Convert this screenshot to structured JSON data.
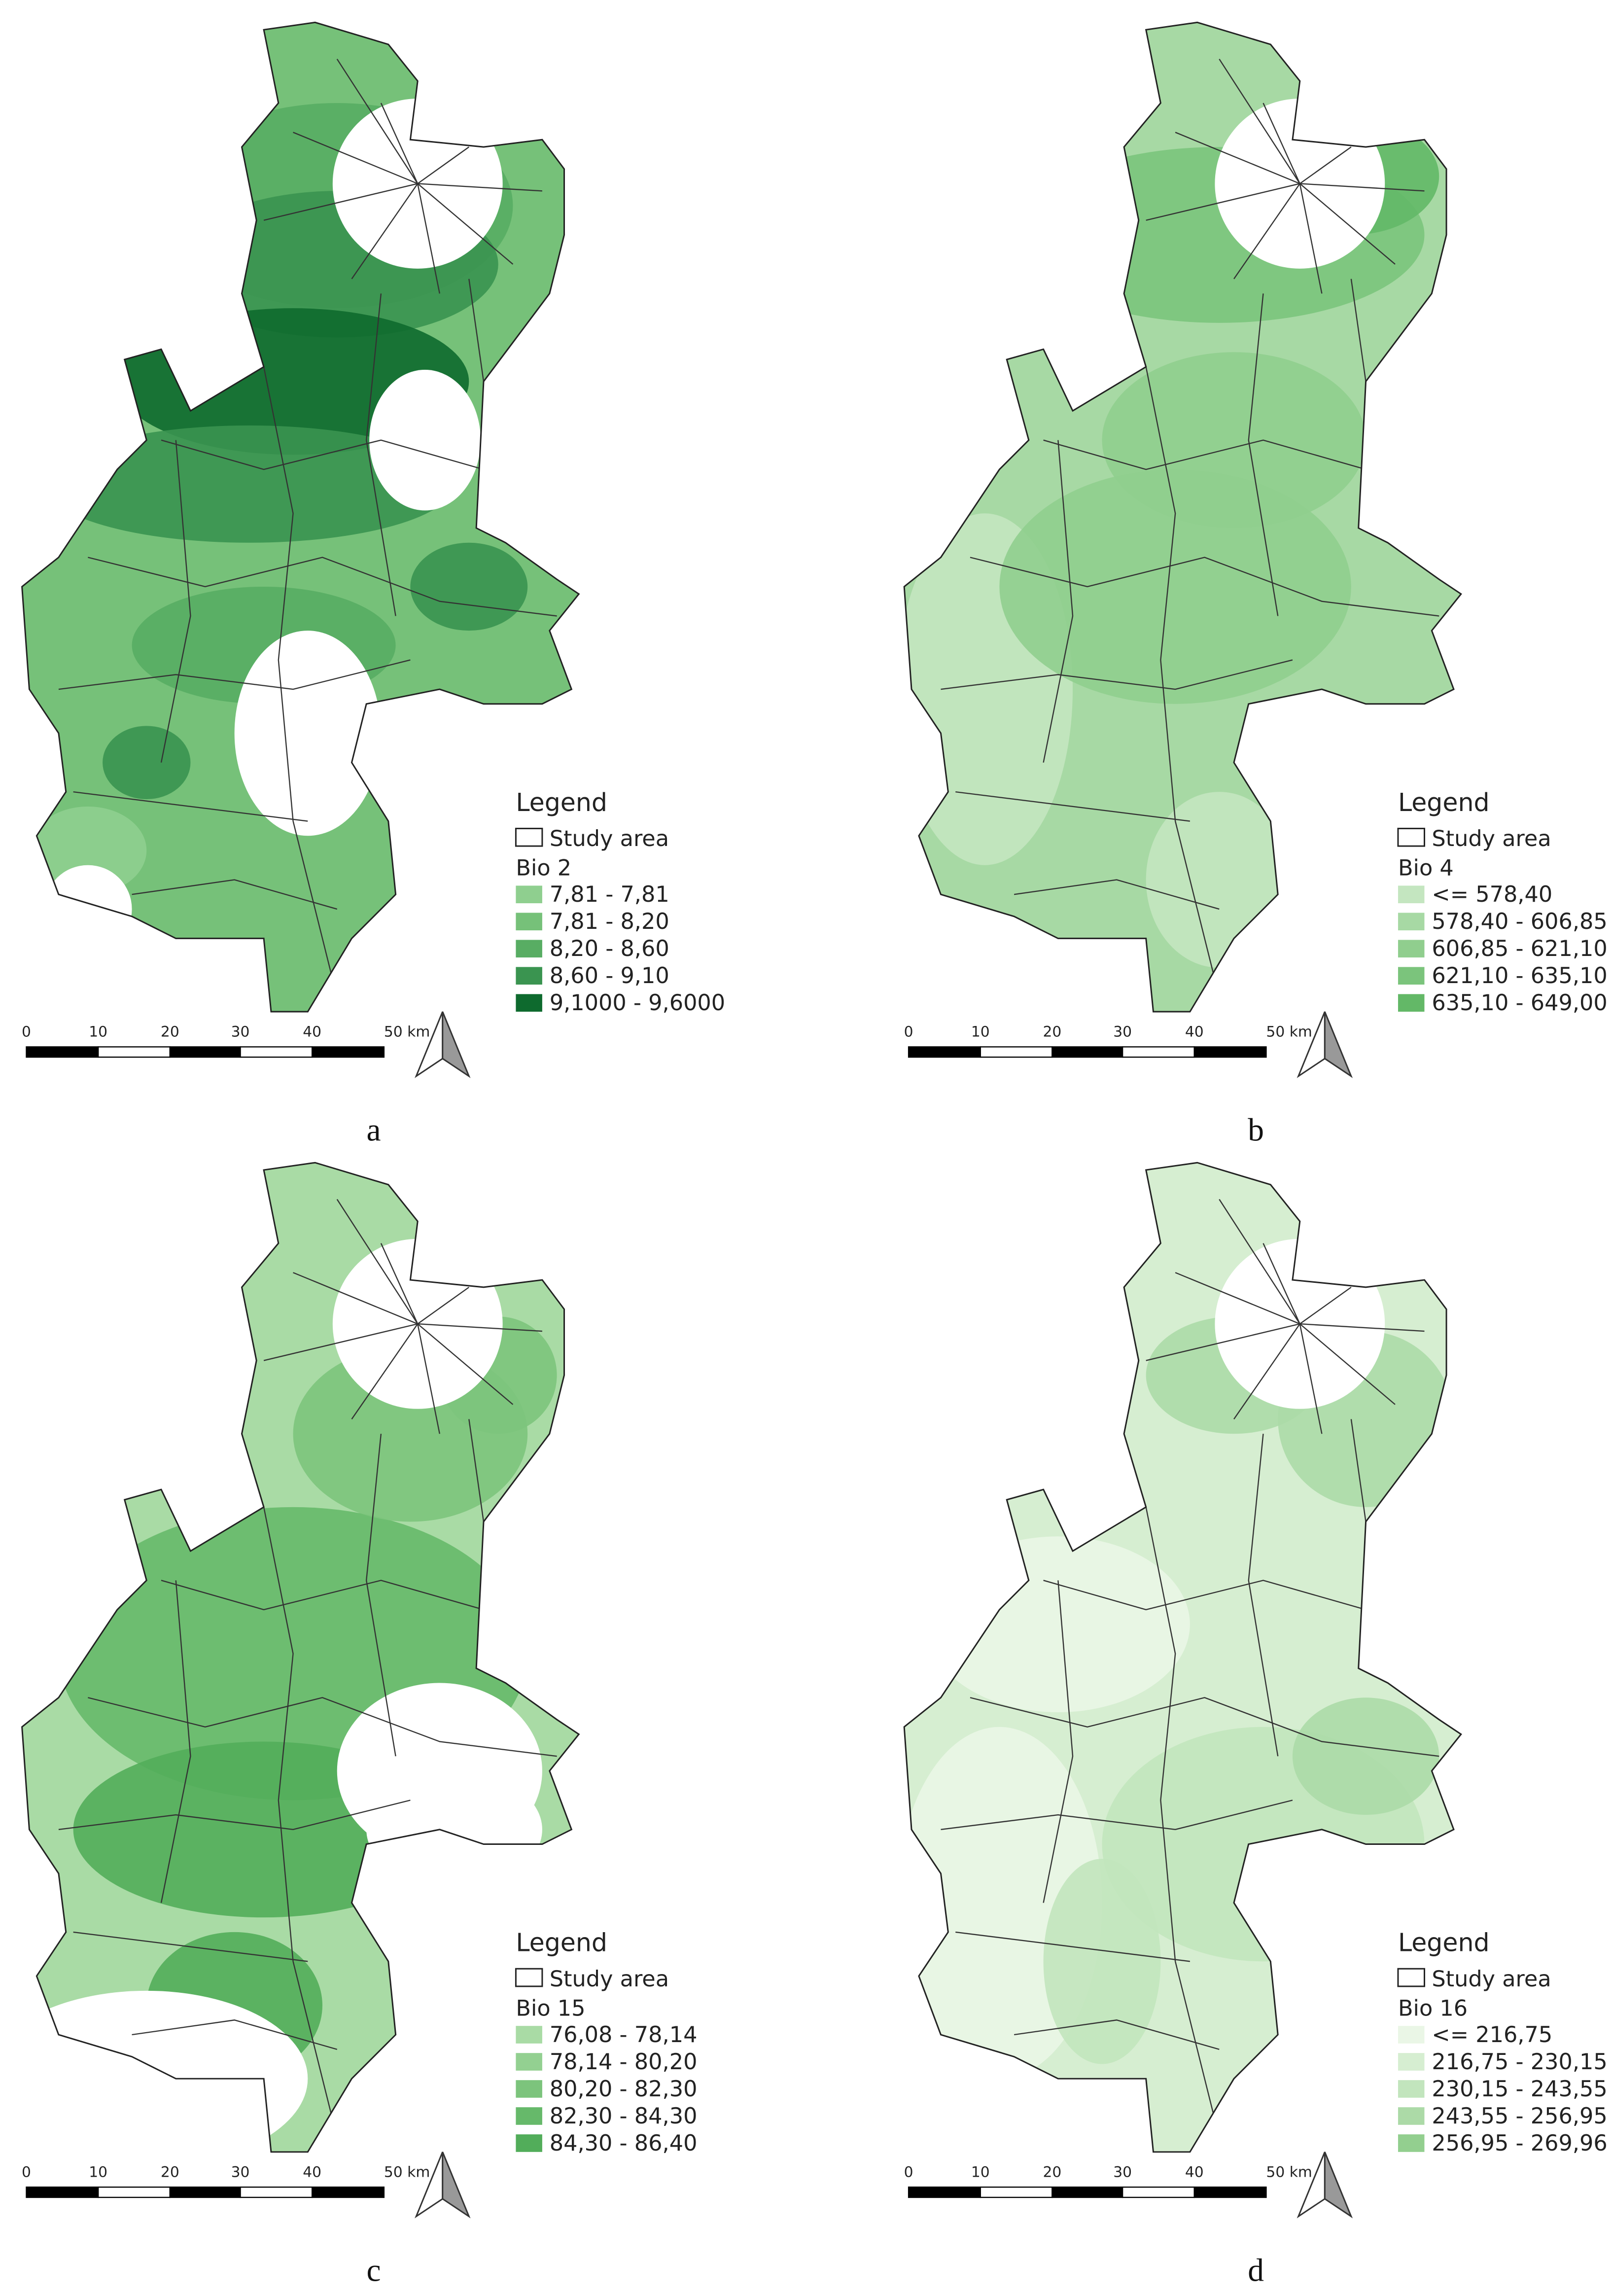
{
  "panels": [
    {
      "letter": "a",
      "legend": {
        "title": "Legend",
        "study_area": "Study area",
        "variable": "Bio 2",
        "classes": [
          {
            "label": "7,81 - 7,81",
            "color": "#8fcf8f"
          },
          {
            "label": "7,81 - 8,20",
            "color": "#76c179"
          },
          {
            "label": "8,20 - 8,60",
            "color": "#58ad63"
          },
          {
            "label": "8,60 - 9,10",
            "color": "#3a9450"
          },
          {
            "label": "9,1000 - 9,6000",
            "color": "#0e6a2e"
          }
        ]
      }
    },
    {
      "letter": "b",
      "legend": {
        "title": "Legend",
        "study_area": "Study area",
        "variable": "Bio 4",
        "classes": [
          {
            "label": "<= 578,40",
            "color": "#c4e6c0"
          },
          {
            "label": "578,40 - 606,85",
            "color": "#a7d9a4"
          },
          {
            "label": "606,85 - 621,10",
            "color": "#90ce8e"
          },
          {
            "label": "621,10 - 635,10",
            "color": "#7bc47c"
          },
          {
            "label": "635,10 - 649,00",
            "color": "#63b867"
          }
        ]
      }
    },
    {
      "letter": "c",
      "legend": {
        "title": "Legend",
        "study_area": "Study area",
        "variable": "Bio 15",
        "classes": [
          {
            "label": "76,08 - 78,14",
            "color": "#a9dba5"
          },
          {
            "label": "78,14 - 80,20",
            "color": "#93d091"
          },
          {
            "label": "80,20 - 82,30",
            "color": "#7cc47c"
          },
          {
            "label": "82,30 - 84,30",
            "color": "#66b96a"
          },
          {
            "label": "84,30 - 86,40",
            "color": "#52ad5a"
          }
        ]
      }
    },
    {
      "letter": "d",
      "legend": {
        "title": "Legend",
        "study_area": "Study area",
        "variable": "Bio 16",
        "classes": [
          {
            "label": "<= 216,75",
            "color": "#eaf6e6"
          },
          {
            "label": "216,75 - 230,15",
            "color": "#d6eed1"
          },
          {
            "label": "230,15 - 243,55",
            "color": "#c2e5bd"
          },
          {
            "label": "243,55 - 256,95",
            "color": "#acdaa7"
          },
          {
            "label": "256,95 - 269,96",
            "color": "#93cf8f"
          }
        ]
      }
    }
  ],
  "scale_bar_labels": [
    "0",
    "10",
    "20",
    "30",
    "40",
    "50 km"
  ]
}
